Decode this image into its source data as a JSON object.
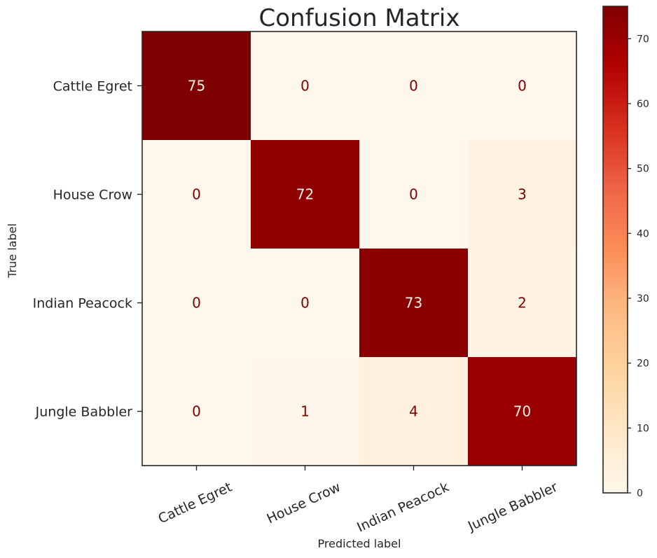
{
  "chart_data": {
    "type": "heatmap",
    "title": "Confusion Matrix",
    "xlabel": "Predicted label",
    "ylabel": "True label",
    "x_categories": [
      "Cattle Egret",
      "House Crow",
      "Indian Peacock",
      "Jungle Babbler"
    ],
    "y_categories": [
      "Cattle Egret",
      "House Crow",
      "Indian Peacock",
      "Jungle Babbler"
    ],
    "matrix": [
      [
        75,
        0,
        0,
        0
      ],
      [
        0,
        72,
        0,
        3
      ],
      [
        0,
        0,
        73,
        2
      ],
      [
        0,
        1,
        4,
        70
      ]
    ],
    "colorbar": {
      "colormap": "OrRd",
      "range": [
        0,
        75
      ],
      "ticks": [
        0,
        10,
        20,
        30,
        40,
        50,
        60,
        70
      ]
    },
    "colors": {
      "low_text": "#7f0000",
      "high_text": "#fff5eb"
    }
  }
}
